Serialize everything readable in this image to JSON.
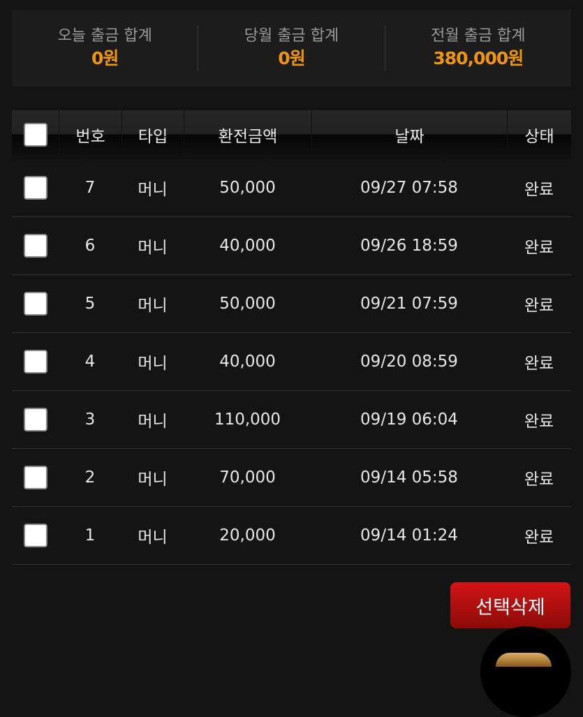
{
  "summary": [
    {
      "label": "오늘 출금 합계",
      "value": "0원"
    },
    {
      "label": "당월 출금 합계",
      "value": "0원"
    },
    {
      "label": "전월 출금 합계",
      "value": "380,000원"
    }
  ],
  "table": {
    "headers": [
      "번호",
      "타입",
      "환전금액",
      "날짜",
      "상태"
    ],
    "rows": [
      {
        "no": "7",
        "type": "머니",
        "amount": "50,000",
        "date": "09/27 07:58",
        "status": "완료"
      },
      {
        "no": "6",
        "type": "머니",
        "amount": "40,000",
        "date": "09/26 18:59",
        "status": "완료"
      },
      {
        "no": "5",
        "type": "머니",
        "amount": "50,000",
        "date": "09/21 07:59",
        "status": "완료"
      },
      {
        "no": "4",
        "type": "머니",
        "amount": "40,000",
        "date": "09/20 08:59",
        "status": "완료"
      },
      {
        "no": "3",
        "type": "머니",
        "amount": "110,000",
        "date": "09/19 06:04",
        "status": "완료"
      },
      {
        "no": "2",
        "type": "머니",
        "amount": "70,000",
        "date": "09/14 05:58",
        "status": "완료"
      },
      {
        "no": "1",
        "type": "머니",
        "amount": "20,000",
        "date": "09/14 01:24",
        "status": "완료"
      }
    ]
  },
  "delete_button": "선택삭제",
  "colors": {
    "accent": "#f0960e",
    "button": "#c81212"
  }
}
